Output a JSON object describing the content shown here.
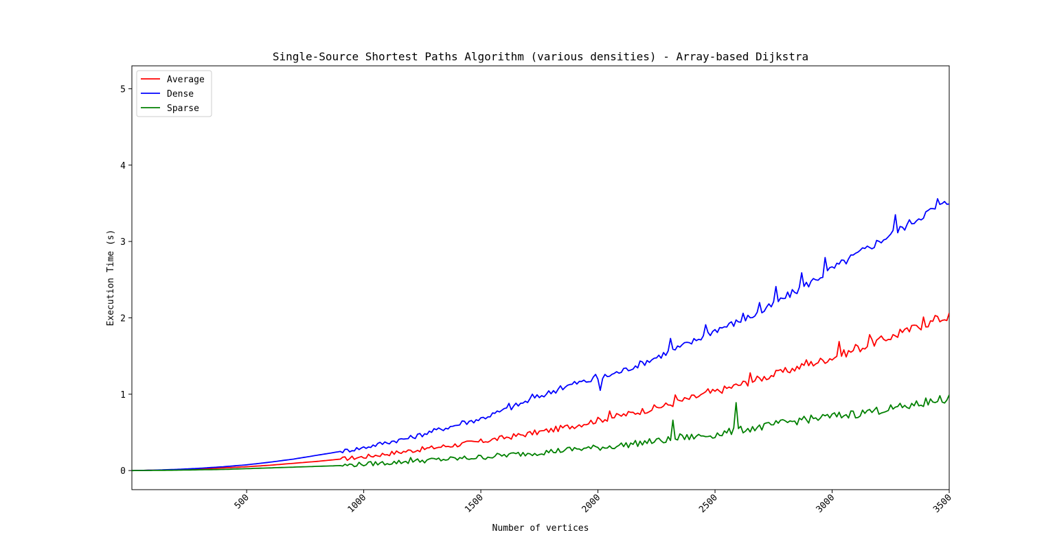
{
  "chart_data": {
    "type": "line",
    "title": "Single-Source Shortest Paths Algorithm (various densities) - Array-based Dijkstra",
    "xlabel": "Number of vertices",
    "ylabel": "Execution Time (s)",
    "xlim": [
      10,
      3500
    ],
    "ylim": [
      -0.25,
      5.3
    ],
    "xticks": [
      500,
      1000,
      1500,
      2000,
      2500,
      3000,
      3500
    ],
    "yticks": [
      0,
      1,
      2,
      3,
      4,
      5
    ],
    "legend": "top-left",
    "grid": false,
    "x": [
      10,
      100,
      200,
      300,
      400,
      500,
      600,
      700,
      800,
      900,
      1000,
      1100,
      1200,
      1300,
      1400,
      1500,
      1600,
      1700,
      1800,
      1900,
      2000,
      2100,
      2200,
      2300,
      2400,
      2500,
      2600,
      2700,
      2800,
      2900,
      3000,
      3100,
      3200,
      3300,
      3400,
      3500
    ],
    "series": [
      {
        "name": "Average",
        "color": "#ff0000",
        "values": [
          0.0,
          0.005,
          0.01,
          0.02,
          0.035,
          0.05,
          0.07,
          0.095,
          0.12,
          0.15,
          0.18,
          0.22,
          0.26,
          0.3,
          0.34,
          0.38,
          0.43,
          0.48,
          0.53,
          0.59,
          0.66,
          0.72,
          0.79,
          0.86,
          0.95,
          1.03,
          1.12,
          1.21,
          1.3,
          1.39,
          1.48,
          1.58,
          1.7,
          1.8,
          1.92,
          2.02
        ],
        "spikes": [
          [
            2050,
            0.78
          ],
          [
            2330,
            0.99
          ],
          [
            2465,
            1.07
          ],
          [
            2650,
            1.28
          ],
          [
            2770,
            1.31
          ],
          [
            2890,
            1.45
          ],
          [
            3030,
            1.69
          ],
          [
            3100,
            1.65
          ],
          [
            3155,
            1.78
          ],
          [
            3290,
            1.85
          ],
          [
            3335,
            1.9
          ],
          [
            3390,
            2.01
          ],
          [
            3440,
            2.03
          ]
        ]
      },
      {
        "name": "Dense",
        "color": "#0000ff",
        "values": [
          0.0,
          0.005,
          0.015,
          0.03,
          0.05,
          0.075,
          0.11,
          0.15,
          0.2,
          0.25,
          0.3,
          0.37,
          0.43,
          0.52,
          0.6,
          0.68,
          0.79,
          0.91,
          1.03,
          1.14,
          1.2,
          1.3,
          1.42,
          1.55,
          1.68,
          1.84,
          1.95,
          2.08,
          2.27,
          2.45,
          2.64,
          2.82,
          3.0,
          3.18,
          3.37,
          3.52
        ],
        "spikes": [
          [
            1420,
            0.65
          ],
          [
            1620,
            0.88
          ],
          [
            1720,
            1.0
          ],
          [
            1840,
            1.11
          ],
          [
            1990,
            1.26
          ],
          [
            2010,
            1.05
          ],
          [
            2310,
            1.73
          ],
          [
            2460,
            1.91
          ],
          [
            2620,
            2.06
          ],
          [
            2690,
            2.2
          ],
          [
            2760,
            2.41
          ],
          [
            2870,
            2.59
          ],
          [
            2965,
            2.79
          ],
          [
            3265,
            3.35
          ],
          [
            3450,
            3.56
          ]
        ]
      },
      {
        "name": "Sparse",
        "color": "#008000",
        "values": [
          0.0,
          0.002,
          0.005,
          0.01,
          0.015,
          0.025,
          0.035,
          0.045,
          0.055,
          0.065,
          0.085,
          0.1,
          0.12,
          0.14,
          0.155,
          0.175,
          0.2,
          0.225,
          0.25,
          0.28,
          0.3,
          0.33,
          0.37,
          0.4,
          0.44,
          0.47,
          0.53,
          0.57,
          0.63,
          0.67,
          0.71,
          0.74,
          0.79,
          0.83,
          0.88,
          0.95
        ],
        "spikes": [
          [
            1195,
            0.17
          ],
          [
            2315,
            0.66
          ],
          [
            2345,
            0.48
          ],
          [
            2590,
            0.89
          ],
          [
            2600,
            0.55
          ],
          [
            2770,
            0.62
          ],
          [
            2880,
            0.71
          ],
          [
            3075,
            0.78
          ],
          [
            3155,
            0.8
          ],
          [
            3340,
            0.88
          ],
          [
            3400,
            0.95
          ],
          [
            3460,
            0.98
          ]
        ]
      }
    ]
  }
}
